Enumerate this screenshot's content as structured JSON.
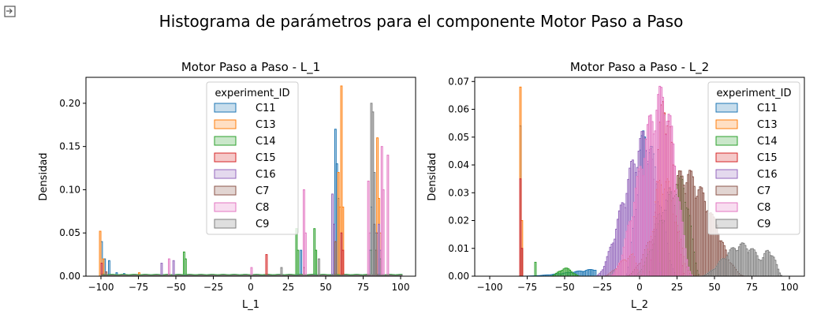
{
  "figure_title": "Histograma de parámetros para el componente Motor Paso a Paso",
  "corner_icon": "output-collapse-icon",
  "chart_data": [
    {
      "type": "histogram",
      "title": "Motor Paso a Paso - L_1",
      "xlabel": "L_1",
      "ylabel": "Densidad",
      "xlim": [
        -110,
        110
      ],
      "ylim": [
        0,
        0.23
      ],
      "xticks": [
        -100,
        -75,
        -50,
        -25,
        0,
        25,
        50,
        75,
        100
      ],
      "yticks": [
        0.0,
        0.05,
        0.1,
        0.15,
        0.2
      ],
      "ytick_labels": [
        "0.00",
        "0.05",
        "0.10",
        "0.15",
        "0.20"
      ],
      "grid": false,
      "legend": {
        "title": "experiment_ID",
        "placement": "upper-center"
      },
      "bin_width": 1,
      "series": [
        {
          "name": "C11",
          "color": "#1f77b4",
          "peaks": [
            [
              -100,
              0.04
            ],
            [
              -98,
              0.02
            ],
            [
              -95,
              0.018
            ],
            [
              -90,
              0.004
            ],
            [
              -85,
              0.003
            ],
            [
              33,
              0.03
            ],
            [
              55,
              0.06
            ],
            [
              56,
              0.17
            ],
            [
              57,
              0.13
            ],
            [
              58,
              0.09
            ],
            [
              60,
              0.05
            ],
            [
              79,
              0.03
            ],
            [
              80,
              0.08
            ],
            [
              82,
              0.06
            ]
          ],
          "spread": [
            [
              -100,
              100,
              0.002
            ]
          ]
        },
        {
          "name": "C13",
          "color": "#ff7f0e",
          "peaks": [
            [
              -101,
              0.052
            ],
            [
              -99,
              0.02
            ],
            [
              -75,
              0.004
            ],
            [
              58,
              0.12
            ],
            [
              59,
              0.08
            ],
            [
              60,
              0.22
            ],
            [
              61,
              0.08
            ],
            [
              84,
              0.16
            ],
            [
              85,
              0.09
            ],
            [
              86,
              0.05
            ]
          ],
          "spread": [
            [
              -100,
              100,
              0.001
            ]
          ]
        },
        {
          "name": "C14",
          "color": "#2ca02c",
          "peaks": [
            [
              -45,
              0.028
            ],
            [
              -44,
              0.02
            ],
            [
              30,
              0.055
            ],
            [
              31,
              0.03
            ],
            [
              42,
              0.055
            ],
            [
              43,
              0.03
            ],
            [
              80,
              0.03
            ],
            [
              86,
              0.02
            ]
          ],
          "spread": [
            [
              -100,
              100,
              0.002
            ]
          ]
        },
        {
          "name": "C15",
          "color": "#d62728",
          "peaks": [
            [
              -100,
              0.015
            ],
            [
              10,
              0.025
            ],
            [
              60,
              0.05
            ],
            [
              61,
              0.03
            ],
            [
              83,
              0.03
            ],
            [
              84,
              0.05
            ]
          ],
          "spread": [
            [
              -100,
              100,
              0.001
            ]
          ]
        },
        {
          "name": "C16",
          "color": "#9467bd",
          "peaks": [
            [
              -60,
              0.015
            ],
            [
              -52,
              0.018
            ],
            [
              54,
              0.095
            ],
            [
              55,
              0.06
            ],
            [
              85,
              0.06
            ],
            [
              86,
              0.03
            ]
          ],
          "spread": [
            [
              -100,
              100,
              0.001
            ]
          ]
        },
        {
          "name": "C7",
          "color": "#8c564b",
          "peaks": [
            [
              -97,
              0.005
            ],
            [
              35,
              0.01
            ],
            [
              56,
              0.04
            ],
            [
              82,
              0.06
            ],
            [
              83,
              0.03
            ]
          ],
          "spread": [
            [
              -100,
              100,
              0.001
            ]
          ]
        },
        {
          "name": "C8",
          "color": "#e377c2",
          "peaks": [
            [
              -55,
              0.02
            ],
            [
              0,
              0.01
            ],
            [
              35,
              0.1
            ],
            [
              36,
              0.05
            ],
            [
              78,
              0.11
            ],
            [
              79,
              0.05
            ],
            [
              87,
              0.15
            ],
            [
              88,
              0.1
            ],
            [
              91,
              0.14
            ]
          ],
          "spread": [
            [
              -100,
              100,
              0.001
            ]
          ]
        },
        {
          "name": "C9",
          "color": "#7f7f7f",
          "peaks": [
            [
              20,
              0.01
            ],
            [
              45,
              0.02
            ],
            [
              80,
              0.2
            ],
            [
              81,
              0.19
            ],
            [
              82,
              0.12
            ],
            [
              83,
              0.05
            ]
          ],
          "spread": [
            [
              -100,
              100,
              0.001
            ]
          ]
        }
      ]
    },
    {
      "type": "histogram",
      "title": "Motor Paso a Paso - L_2",
      "xlabel": "L_2",
      "ylabel": "Densidad",
      "xlim": [
        -110,
        110
      ],
      "ylim": [
        0,
        0.0715
      ],
      "xticks": [
        -100,
        -75,
        -50,
        -25,
        0,
        25,
        50,
        75,
        100
      ],
      "yticks": [
        0.0,
        0.01,
        0.02,
        0.03,
        0.04,
        0.05,
        0.06,
        0.07
      ],
      "ytick_labels": [
        "0.00",
        "0.01",
        "0.02",
        "0.03",
        "0.04",
        "0.05",
        "0.06",
        "0.07"
      ],
      "grid": false,
      "legend": {
        "title": "experiment_ID",
        "placement": "upper-right"
      },
      "bin_width": 1,
      "series": [
        {
          "name": "C11",
          "color": "#1f77b4",
          "peaks": [
            [
              -80,
              0.054
            ],
            [
              -79,
              0.01
            ]
          ],
          "spread": [
            [
              -10,
              25,
              0.054,
              3
            ],
            [
              -80,
              -30,
              0.004,
              1
            ]
          ]
        },
        {
          "name": "C13",
          "color": "#ff7f0e",
          "peaks": [
            [
              -80,
              0.068
            ],
            [
              -79,
              0.02
            ]
          ],
          "spread": [
            [
              0,
              35,
              0.038,
              15
            ],
            [
              -25,
              0,
              0.008,
              -5
            ]
          ]
        },
        {
          "name": "C14",
          "color": "#2ca02c",
          "peaks": [
            [
              -70,
              0.005
            ]
          ],
          "spread": [
            [
              -5,
              40,
              0.036,
              28
            ],
            [
              -60,
              -40,
              0.003,
              -50
            ]
          ]
        },
        {
          "name": "C15",
          "color": "#d62728",
          "peaks": [
            [
              -80,
              0.035
            ],
            [
              -79,
              0.01
            ]
          ],
          "spread": [
            [
              5,
              30,
              0.068,
              16
            ]
          ]
        },
        {
          "name": "C16",
          "color": "#9467bd",
          "peaks": [],
          "spread": [
            [
              -30,
              15,
              0.054,
              5
            ]
          ]
        },
        {
          "name": "C7",
          "color": "#8c564b",
          "peaks": [],
          "spread": [
            [
              -10,
              70,
              0.039,
              30
            ],
            [
              38,
              60,
              0.026,
              46
            ]
          ]
        },
        {
          "name": "C8",
          "color": "#e377c2",
          "peaks": [],
          "spread": [
            [
              -20,
              35,
              0.069,
              15
            ]
          ]
        },
        {
          "name": "C9",
          "color": "#7f7f7f",
          "peaks": [],
          "spread": [
            [
              40,
              95,
              0.012,
              68
            ],
            [
              75,
              95,
              0.01,
              86
            ]
          ]
        }
      ]
    }
  ]
}
